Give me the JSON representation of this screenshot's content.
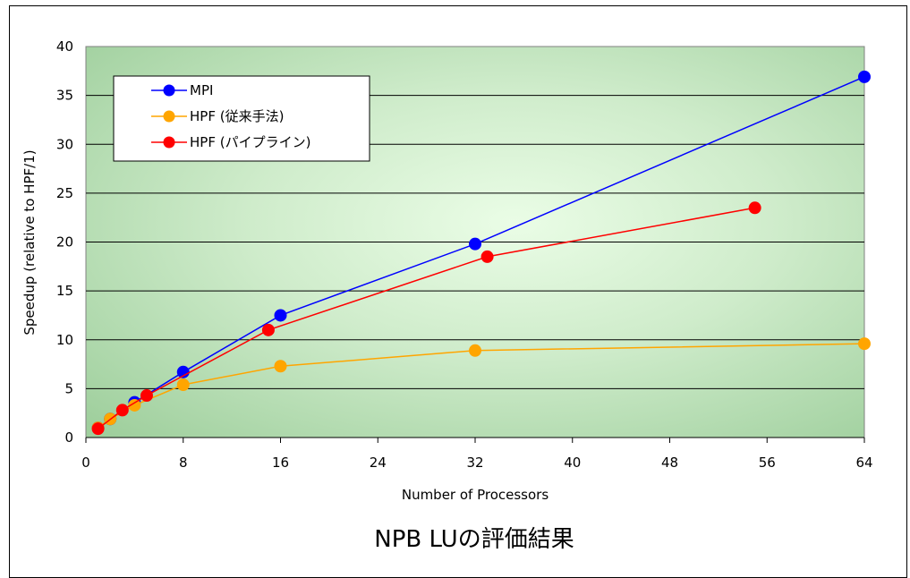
{
  "chart_data": {
    "type": "line",
    "title": "NPB LUの評価結果",
    "xlabel": "Number of Processors",
    "ylabel": "Speedup (relative to HPF/1)",
    "xlim": [
      0,
      64
    ],
    "ylim": [
      0,
      40
    ],
    "xticks": [
      0,
      8,
      16,
      24,
      32,
      40,
      48,
      56,
      64
    ],
    "yticks": [
      0,
      5,
      10,
      15,
      20,
      25,
      30,
      35,
      40
    ],
    "grid": true,
    "legend_position": "top-left",
    "series": [
      {
        "name": "MPI",
        "color": "#0000ff",
        "x": [
          1,
          2,
          4,
          8,
          16,
          32,
          64
        ],
        "y": [
          1.0,
          1.9,
          3.6,
          6.7,
          12.5,
          19.8,
          36.9
        ]
      },
      {
        "name": "HPF (従来手法)",
        "color": "#ffa500",
        "x": [
          1,
          2,
          4,
          8,
          16,
          32,
          64
        ],
        "y": [
          1.0,
          1.9,
          3.3,
          5.4,
          7.3,
          8.9,
          9.6
        ]
      },
      {
        "name": "HPF (パイプライン)",
        "color": "#ff0000",
        "x": [
          1,
          3,
          5,
          15,
          33,
          55
        ],
        "y": [
          0.9,
          2.8,
          4.3,
          11.0,
          18.5,
          23.5
        ]
      }
    ]
  }
}
